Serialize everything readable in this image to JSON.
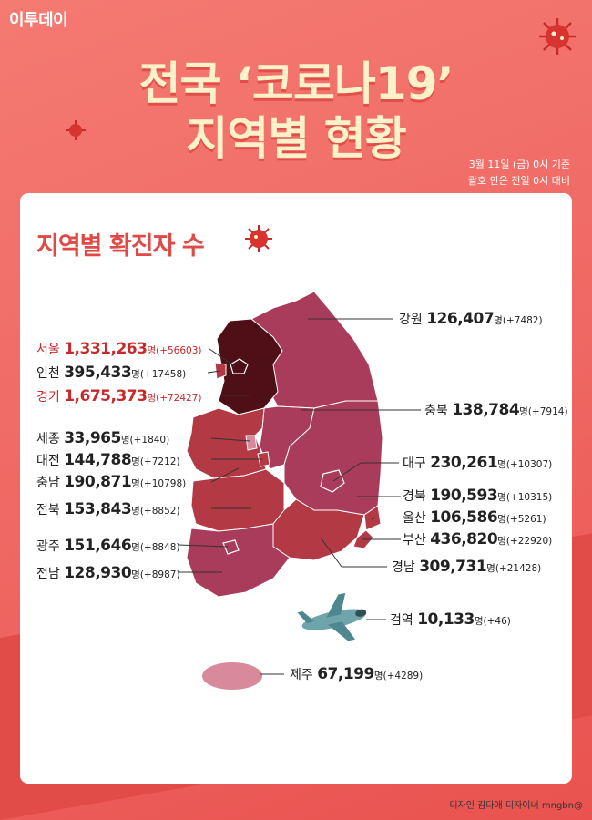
{
  "logo": "이투데이",
  "title": {
    "line1": "전국 ‘코로나19’",
    "line2": "지역별 현황"
  },
  "standard": {
    "line1": "3월 11일 (금) 0시 기준",
    "line2": "괄호 안은 전일 0시 대비"
  },
  "section_title": "지역별 확진자 수",
  "unit": "명",
  "regions": [
    {
      "name": "강원",
      "count": "126,407",
      "delta": "(+7482)"
    },
    {
      "name": "서울",
      "count": "1,331,263",
      "delta": "(+56603)"
    },
    {
      "name": "인천",
      "count": "395,433",
      "delta": "(+17458)"
    },
    {
      "name": "경기",
      "count": "1,675,373",
      "delta": "(+72427)"
    },
    {
      "name": "충북",
      "count": "138,784",
      "delta": "(+7914)"
    },
    {
      "name": "세종",
      "count": "33,965",
      "delta": "(+1840)"
    },
    {
      "name": "대전",
      "count": "144,788",
      "delta": "(+7212)"
    },
    {
      "name": "대구",
      "count": "230,261",
      "delta": "(+10307)"
    },
    {
      "name": "충남",
      "count": "190,871",
      "delta": "(+10798)"
    },
    {
      "name": "경북",
      "count": "190,593",
      "delta": "(+10315)"
    },
    {
      "name": "전북",
      "count": "153,843",
      "delta": "(+8852)"
    },
    {
      "name": "울산",
      "count": "106,586",
      "delta": "(+5261)"
    },
    {
      "name": "부산",
      "count": "436,820",
      "delta": "(+22920)"
    },
    {
      "name": "광주",
      "count": "151,646",
      "delta": "(+8848)"
    },
    {
      "name": "경남",
      "count": "309,731",
      "delta": "(+21428)"
    },
    {
      "name": "전남",
      "count": "128,930",
      "delta": "(+8987)"
    },
    {
      "name": "검역",
      "count": "10,133",
      "delta": "(+46)"
    },
    {
      "name": "제주",
      "count": "67,199",
      "delta": "(+4289)"
    }
  ],
  "colors": {
    "background": "#ef6762",
    "title": "#fdf1c9",
    "accent_red": "#c7292b",
    "metro_dark": "#4e0f17",
    "region_mid": "#b33a45",
    "region_light": "#a93c5a",
    "jeju": "#d8899a"
  },
  "icons": [
    "virus-icon",
    "airplane-icon"
  ],
  "credit": "디자인 김다애 디자이너 mngbn@"
}
